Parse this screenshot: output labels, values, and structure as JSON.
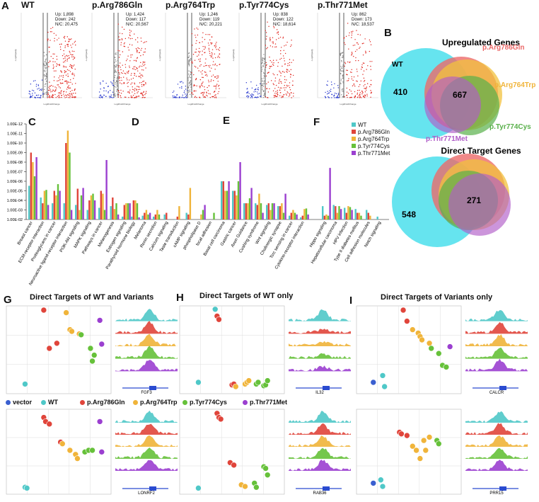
{
  "panel_labels": {
    "A": "A",
    "B": "B",
    "C": "C",
    "D": "D",
    "E": "E",
    "F": "F",
    "G": "G",
    "H": "H",
    "I": "I"
  },
  "volcano": [
    {
      "title": "WT",
      "up": "Up: 1,898",
      "down": "Down: 242",
      "nc": "N/C: 20,475"
    },
    {
      "title": "p.Arg786Gln",
      "up": "Up: 1,424",
      "down": "Down: 117",
      "nc": "N/C: 20,567"
    },
    {
      "title": "p.Arg764Trp",
      "up": "Up: 1,246",
      "down": "Down: 119",
      "nc": "N/C: 20,221"
    },
    {
      "title": "p.Tyr774Cys",
      "up": "Up: 838",
      "down": "Down: 122",
      "nc": "N/C: 18,614"
    },
    {
      "title": "p.Thr771Met",
      "up": "Up: 862",
      "down": "Down: 173",
      "nc": "N/C: 18,537"
    }
  ],
  "volcano_axes": {
    "xlabel": "Log2FoldChange",
    "ylabel": "-Log10(padj)"
  },
  "colors": {
    "WT": "#4fc8c8",
    "Arg786Gln": "#e0453b",
    "Arg764Trp": "#f0b43a",
    "Tyr774Cys": "#66c13a",
    "Thr771Met": "#9b3fd0",
    "vector": "#3a5fd0",
    "venn_wt": "#5ee3ee",
    "venn_arg786": "#ec6a6a",
    "venn_arg764": "#f2c23d",
    "venn_tyr": "#59b04a",
    "venn_thr": "#b05cc8"
  },
  "venn": {
    "upregulated": {
      "title": "Upregulated Genes",
      "wt": "WT",
      "arg786": "p.Arg786Gln",
      "arg764": "p.Arg764Trp",
      "tyr": "p.Tyr774Cys",
      "thr": "p.Thr771Met",
      "n_wt_only": "410",
      "n_shared": "667"
    },
    "direct": {
      "title": "Direct Target Genes",
      "n_wt_only": "548",
      "n_shared": "271"
    }
  },
  "pathway_legend": [
    "WT",
    "p.Arg786Gln",
    "p.Arg764Trp",
    "p.Tyr774Cys",
    "p.Thr771Met"
  ],
  "y_ticks": [
    "1.00E-12",
    "1.00E-11",
    "1.00E-10",
    "1.00E-09",
    "1.00E-08",
    "1.00E-07",
    "1.00E-06",
    "1.00E-05",
    "1.00E-04",
    "1.00E-03",
    "1.00E-02"
  ],
  "chart_data": [
    {
      "type": "bar",
      "ylim": [
        1e-12,
        0.01
      ],
      "series_names": [
        "WT",
        "p.Arg786Gln",
        "p.Arg764Trp",
        "p.Tyr774Cys",
        "p.Thr771Met"
      ],
      "groups": [
        {
          "panel": "C",
          "categories": [
            "Breast cancer",
            "ECM-receptor interaction",
            "Proteoglycans in cancer",
            "Neuroactive ligand-receptor interaction",
            "PI3K-Akt signaling",
            "MAPK signaling",
            "Pathways in cancer",
            "Melanogenesis",
            "Estrogen signaling"
          ],
          "values": [
            [
              3e-06,
              1e-09,
              1e-08,
              3e-07,
              3e-09
            ],
            [
              5e-05,
              0.0002,
              1e-05,
              8e-06,
              0.0003
            ],
            [
              0.0002,
              1e-05,
              3e-05,
              2e-06,
              1e-05
            ],
            [
              0.0002,
              1e-10,
              5e-12,
              1e-09,
              0.001
            ],
            [
              0.0003,
              6e-06,
              0.001,
              3e-05,
              5e-06
            ],
            [
              0.001,
              0.0001,
              3e-05,
              2e-05,
              0.0001
            ],
            [
              0.0006,
              1e-05,
              2e-05,
              0.001,
              6e-09
            ],
            [
              0.0004,
              5e-05,
              0.0008,
              0.0002,
              0.003
            ],
            [
              0.005,
              0.0003,
              0.0002,
              0.0002,
              0.0002
            ]
          ]
        },
        {
          "panel": "D",
          "categories": [
            "Parathyroid hormone biology",
            "Melanoma",
            "Renin secretion",
            "Calcium signaling",
            "Taste transduction",
            "cAMP signaling",
            "phospholipase D",
            "focal adhesion"
          ],
          "values": [
            [
              0.005,
              0.0001,
              0.0001,
              0.0002,
              0.006
            ],
            [
              0.004,
              0.002,
              0.001,
              0.003,
              0.002
            ],
            [
              0.005,
              0.003,
              0.001,
              0.003,
              null
            ],
            [
              0.003,
              0.002,
              null,
              null,
              null
            ],
            [
              0.01,
              0.005,
              0.0004,
              null,
              null
            ],
            [
              0.002,
              0.003,
              5e-06,
              null,
              null
            ],
            [
              null,
              null,
              0.003,
              0.001,
              0.0003
            ],
            [
              null,
              null,
              null,
              0.002,
              null
            ]
          ]
        },
        {
          "panel": "E",
          "categories": [
            "Basal cell carcinoma",
            "Gastric cancer",
            "Axon Guidance",
            "Cushing syndrome",
            "Wnt signaling",
            "Cholinergic synapse",
            "Tcrc sensing in cancer",
            "Cytokine-receptor interaction"
          ],
          "values": [
            [
              1e-06,
              1e-06,
              1e-05,
              1e-05,
              1e-06
            ],
            [
              1e-05,
              1e-05,
              3e-05,
              1e-06,
              1e-08
            ],
            [
              0.0002,
              0.0002,
              0.0002,
              6e-05,
              5e-06
            ],
            [
              0.0002,
              0.0003,
              2e-05,
              0.0002,
              0.002
            ],
            [
              0.0003,
              0.0002,
              0.001,
              0.0002,
              0.0002
            ],
            [
              0.0004,
              0.0004,
              0.0002,
              0.002,
              2e-05
            ],
            [
              0.004,
              0.002,
              0.001,
              0.002,
              0.003
            ],
            [
              0.006,
              0.004,
              0.0008,
              0.0007,
              0.003
            ]
          ]
        },
        {
          "panel": "F",
          "categories": [
            "Hippo signaling",
            "Hepatocellular carcinoma",
            "HPV infection",
            "Type II diabetes mellitus",
            "Cell adhesion molecules",
            "Notch signaling"
          ],
          "values": [
            [
              0.0004,
              0.004,
              0.003,
              0.004,
              4e-08
            ],
            [
              0.0003,
              0.0004,
              0.002,
              0.0004,
              0.0008
            ],
            [
              0.0006,
              0.002,
              0.0004,
              0.0005,
              0.001
            ],
            [
              0.0008,
              0.002,
              0.002,
              0.004,
              null
            ],
            [
              0.001,
              0.002,
              0.004,
              null,
              null
            ],
            [
              0.005,
              null,
              null,
              null,
              null
            ]
          ]
        }
      ]
    },
    {
      "type": "scatter",
      "panels": [
        {
          "title": "Direct Targets of WT and Variants",
          "gene": "FGF3",
          "points": [
            [
              1,
              0.08
            ],
            [
              2,
              0.95
            ],
            [
              2.3,
              0.5
            ],
            [
              2.7,
              0.56
            ],
            [
              3.2,
              0.92
            ],
            [
              3.4,
              0.72
            ],
            [
              3.5,
              0.7
            ],
            [
              3.9,
              0.67
            ],
            [
              4.0,
              0.66
            ],
            [
              4.5,
              0.5
            ],
            [
              4.6,
              0.35
            ],
            [
              4.7,
              0.42
            ],
            [
              5.0,
              0.83
            ],
            [
              5.1,
              0.55
            ]
          ]
        },
        {
          "title": "Direct Targets of WT only",
          "gene": "IL32",
          "points": [
            [
              1,
              0.1
            ],
            [
              1.9,
              0.96
            ],
            [
              2.0,
              0.88
            ],
            [
              2.1,
              0.84
            ],
            [
              2.8,
              0.07
            ],
            [
              2.9,
              0.08
            ],
            [
              3.0,
              0.05
            ],
            [
              3.5,
              0.08
            ],
            [
              3.6,
              0.1
            ],
            [
              3.7,
              0.12
            ],
            [
              4.1,
              0.08
            ],
            [
              4.2,
              0.1
            ],
            [
              4.5,
              0.06
            ],
            [
              4.6,
              0.07
            ],
            [
              4.7,
              0.12
            ]
          ]
        },
        {
          "title": "Direct Targets of Variants only",
          "gene": "CALCR",
          "points": [
            [
              0.9,
              0.1
            ],
            [
              1.4,
              0.18
            ],
            [
              1.5,
              0.05
            ],
            [
              2.5,
              0.95
            ],
            [
              2.7,
              0.82
            ],
            [
              3.0,
              0.72
            ],
            [
              3.3,
              0.68
            ],
            [
              3.4,
              0.64
            ],
            [
              3.5,
              0.6
            ],
            [
              3.9,
              0.56
            ],
            [
              4.0,
              0.5
            ],
            [
              4.4,
              0.44
            ],
            [
              4.6,
              0.3
            ],
            [
              4.8,
              0.28
            ],
            [
              5.0,
              0.52
            ]
          ]
        },
        {
          "title": "",
          "gene": "LONRF2",
          "points": [
            [
              1,
              0.05
            ],
            [
              1.1,
              0.04
            ],
            [
              2.0,
              0.9
            ],
            [
              2.1,
              0.85
            ],
            [
              2.3,
              0.82
            ],
            [
              2.9,
              0.6
            ],
            [
              3.0,
              0.58
            ],
            [
              3.4,
              0.5
            ],
            [
              3.7,
              0.45
            ],
            [
              3.8,
              0.4
            ],
            [
              4.2,
              0.48
            ],
            [
              4.4,
              0.5
            ],
            [
              4.6,
              0.5
            ],
            [
              5.0,
              0.85
            ],
            [
              5.1,
              0.48
            ]
          ]
        },
        {
          "title": "",
          "gene": "RAB36",
          "points": [
            [
              1,
              0.04
            ],
            [
              2.0,
              0.95
            ],
            [
              2.1,
              0.9
            ],
            [
              2.2,
              0.88
            ],
            [
              2.7,
              0.35
            ],
            [
              2.9,
              0.32
            ],
            [
              3.3,
              0.08
            ],
            [
              3.5,
              0.06
            ],
            [
              4.0,
              0.1
            ],
            [
              4.1,
              0.05
            ],
            [
              4.5,
              0.3
            ],
            [
              4.6,
              0.28
            ],
            [
              4.7,
              0.2
            ]
          ]
        },
        {
          "title": "",
          "gene": "PRR15",
          "points": [
            [
              0.9,
              0.1
            ],
            [
              1.3,
              0.14
            ],
            [
              1.4,
              0.06
            ],
            [
              2.3,
              0.72
            ],
            [
              2.4,
              0.7
            ],
            [
              2.7,
              0.68
            ],
            [
              3.0,
              0.55
            ],
            [
              3.2,
              0.5
            ],
            [
              3.4,
              0.4
            ],
            [
              3.6,
              0.62
            ],
            [
              3.7,
              0.5
            ],
            [
              3.9,
              0.66
            ],
            [
              4.3,
              0.62
            ],
            [
              4.4,
              0.58
            ]
          ]
        }
      ]
    }
  ],
  "scatter_legend": [
    "vector",
    "WT",
    "p.Arg786Gln",
    "p.Arg764Trp",
    "p.Tyr774Cys",
    "p.Thr771Met"
  ]
}
